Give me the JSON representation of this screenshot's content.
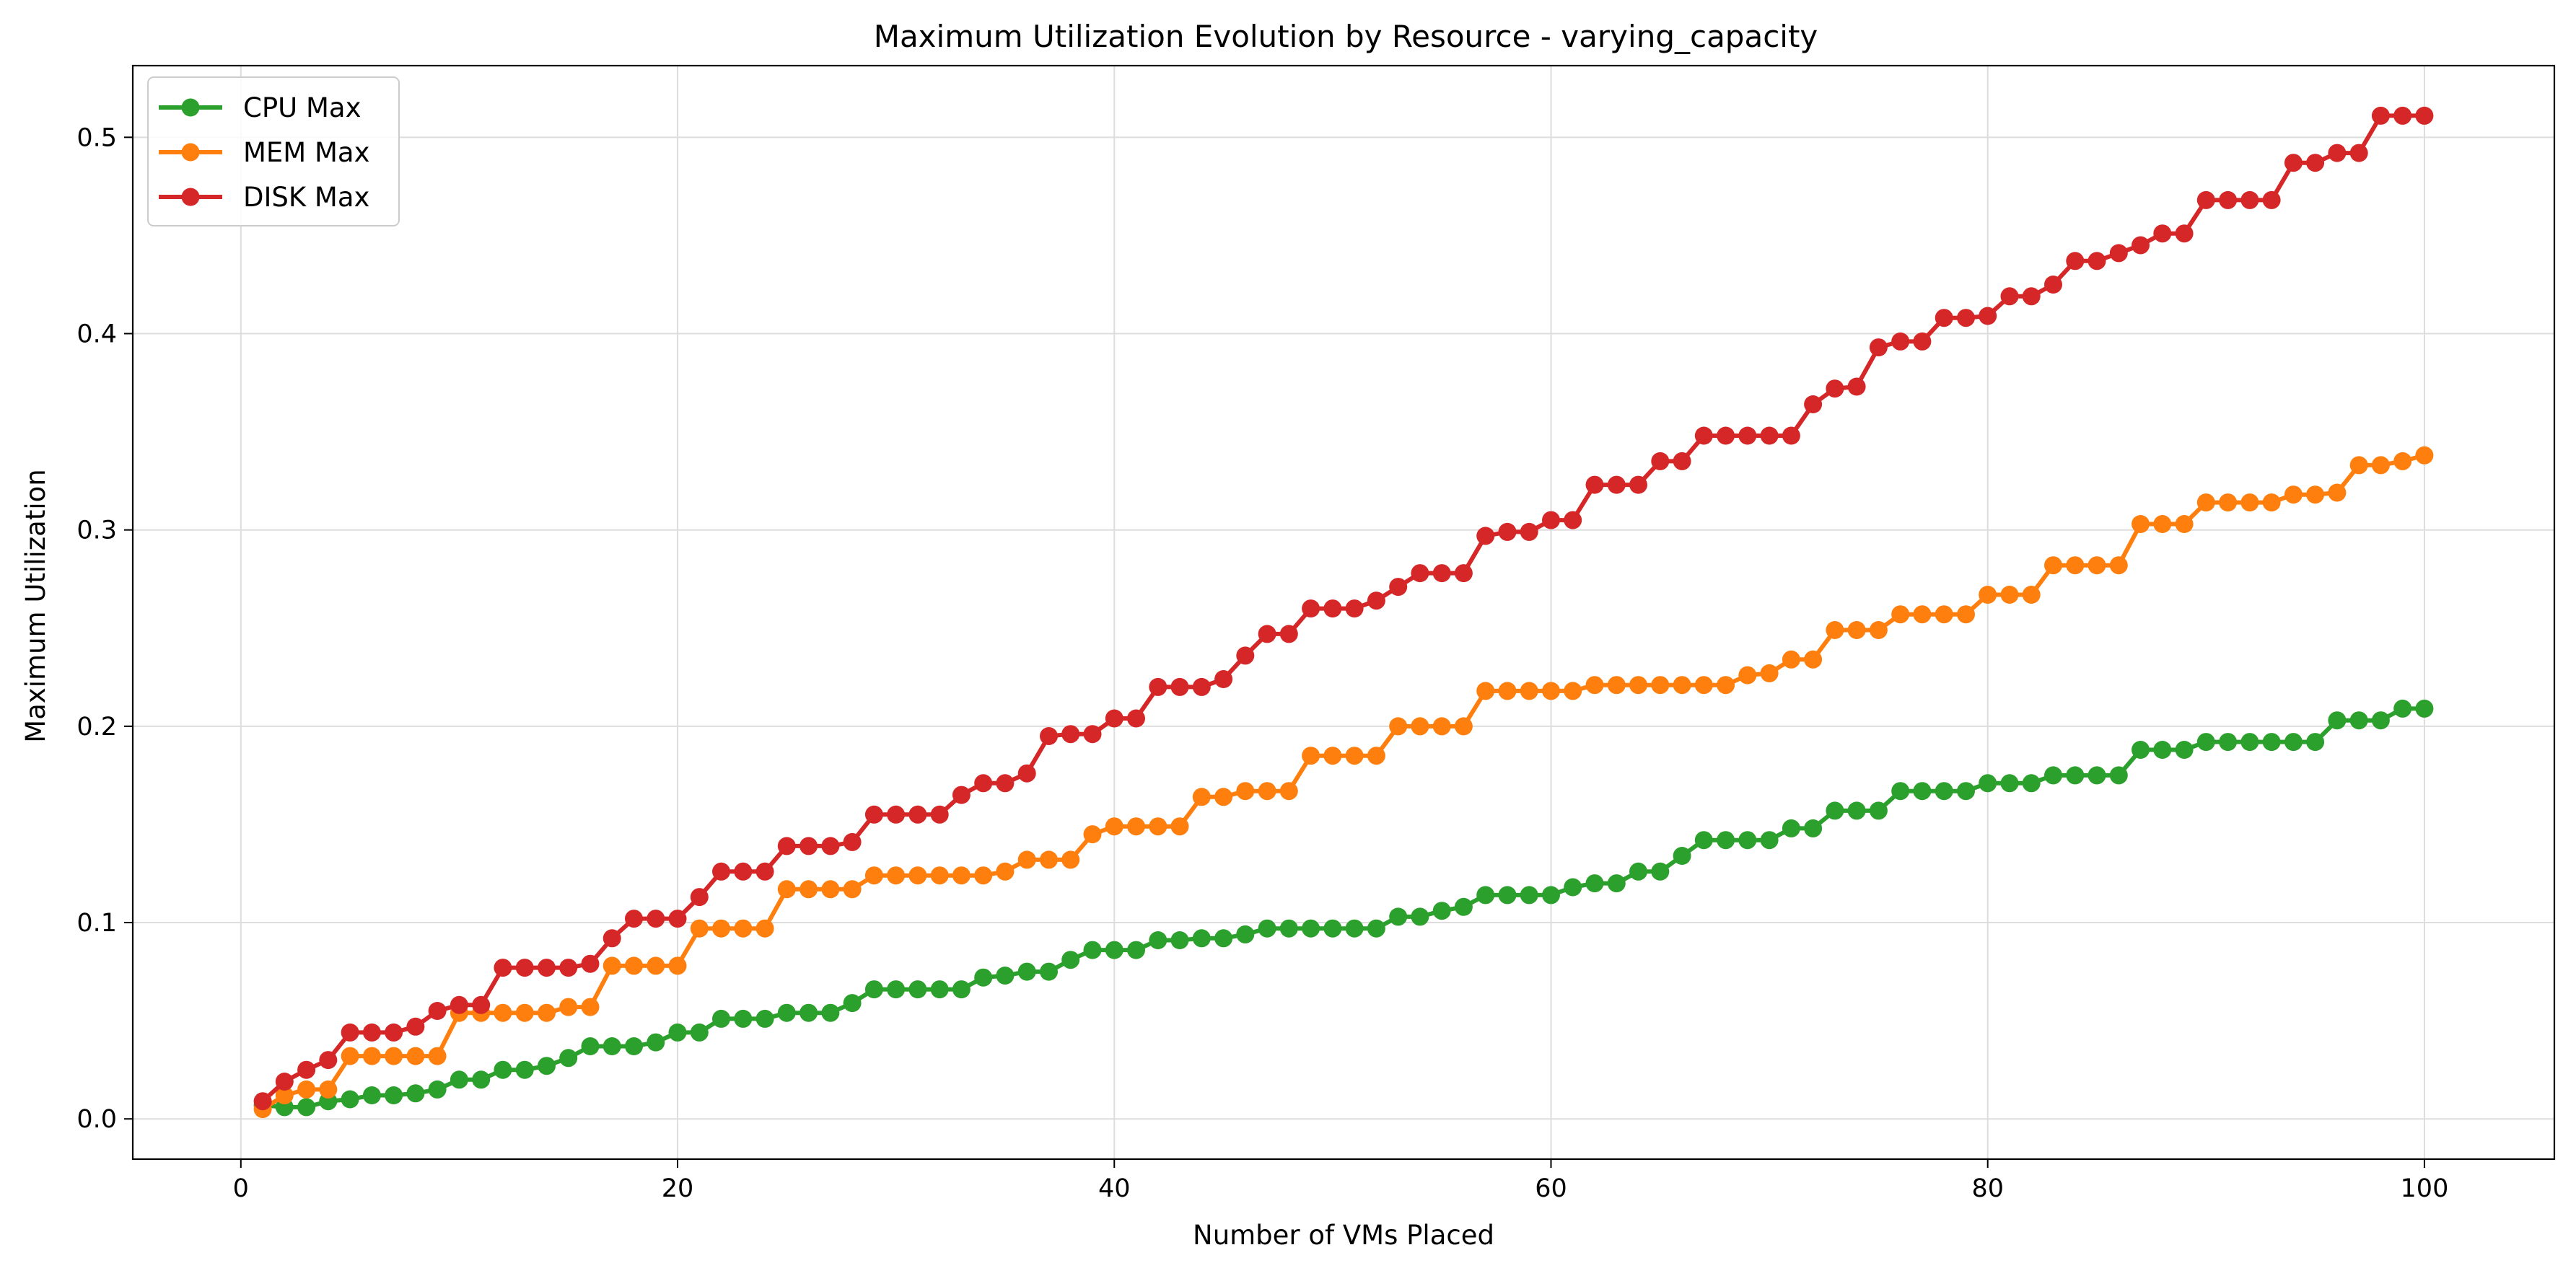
{
  "chart_data": {
    "type": "line",
    "title": "Maximum Utilization Evolution by Resource - varying_capacity",
    "xlabel": "Number of VMs Placed",
    "ylabel": "Maximum Utilization",
    "xlim": [
      -4.95,
      105.95
    ],
    "ylim": [
      -0.0205,
      0.5365
    ],
    "xticks": [
      0,
      20,
      40,
      60,
      80,
      100
    ],
    "yticks": [
      0.0,
      0.1,
      0.2,
      0.3,
      0.4,
      0.5
    ],
    "xtick_labels": [
      "0",
      "20",
      "40",
      "60",
      "80",
      "100"
    ],
    "ytick_labels": [
      "0.0",
      "0.1",
      "0.2",
      "0.3",
      "0.4",
      "0.5"
    ],
    "grid": true,
    "legend_position": "top-left",
    "x": [
      1,
      2,
      3,
      4,
      5,
      6,
      7,
      8,
      9,
      10,
      11,
      12,
      13,
      14,
      15,
      16,
      17,
      18,
      19,
      20,
      21,
      22,
      23,
      24,
      25,
      26,
      27,
      28,
      29,
      30,
      31,
      32,
      33,
      34,
      35,
      36,
      37,
      38,
      39,
      40,
      41,
      42,
      43,
      44,
      45,
      46,
      47,
      48,
      49,
      50,
      51,
      52,
      53,
      54,
      55,
      56,
      57,
      58,
      59,
      60,
      61,
      62,
      63,
      64,
      65,
      66,
      67,
      68,
      69,
      70,
      71,
      72,
      73,
      74,
      75,
      76,
      77,
      78,
      79,
      80,
      81,
      82,
      83,
      84,
      85,
      86,
      87,
      88,
      89,
      90,
      91,
      92,
      93,
      94,
      95,
      96,
      97,
      98,
      99,
      100
    ],
    "series": [
      {
        "name": "CPU Max",
        "color": "#2ca02c",
        "values": [
          0.007,
          0.006,
          0.006,
          0.009,
          0.01,
          0.012,
          0.012,
          0.013,
          0.015,
          0.02,
          0.02,
          0.025,
          0.025,
          0.027,
          0.031,
          0.037,
          0.037,
          0.037,
          0.039,
          0.044,
          0.044,
          0.051,
          0.051,
          0.051,
          0.054,
          0.054,
          0.054,
          0.059,
          0.066,
          0.066,
          0.066,
          0.066,
          0.066,
          0.072,
          0.073,
          0.075,
          0.075,
          0.081,
          0.086,
          0.086,
          0.086,
          0.091,
          0.091,
          0.092,
          0.092,
          0.094,
          0.097,
          0.097,
          0.097,
          0.097,
          0.097,
          0.097,
          0.103,
          0.103,
          0.106,
          0.108,
          0.114,
          0.114,
          0.114,
          0.114,
          0.118,
          0.12,
          0.12,
          0.126,
          0.126,
          0.134,
          0.142,
          0.142,
          0.142,
          0.142,
          0.148,
          0.148,
          0.157,
          0.157,
          0.157,
          0.167,
          0.167,
          0.167,
          0.167,
          0.171,
          0.171,
          0.171,
          0.175,
          0.175,
          0.175,
          0.175,
          0.188,
          0.188,
          0.188,
          0.192,
          0.192,
          0.192,
          0.192,
          0.192,
          0.192,
          0.203,
          0.203,
          0.203,
          0.209,
          0.209
        ]
      },
      {
        "name": "MEM Max",
        "color": "#ff7f0e",
        "values": [
          0.005,
          0.012,
          0.015,
          0.015,
          0.032,
          0.032,
          0.032,
          0.032,
          0.032,
          0.054,
          0.054,
          0.054,
          0.054,
          0.054,
          0.057,
          0.057,
          0.078,
          0.078,
          0.078,
          0.078,
          0.097,
          0.097,
          0.097,
          0.097,
          0.117,
          0.117,
          0.117,
          0.117,
          0.124,
          0.124,
          0.124,
          0.124,
          0.124,
          0.124,
          0.126,
          0.132,
          0.132,
          0.132,
          0.145,
          0.149,
          0.149,
          0.149,
          0.149,
          0.164,
          0.164,
          0.167,
          0.167,
          0.167,
          0.185,
          0.185,
          0.185,
          0.185,
          0.2,
          0.2,
          0.2,
          0.2,
          0.218,
          0.218,
          0.218,
          0.218,
          0.218,
          0.221,
          0.221,
          0.221,
          0.221,
          0.221,
          0.221,
          0.221,
          0.226,
          0.227,
          0.234,
          0.234,
          0.249,
          0.249,
          0.249,
          0.257,
          0.257,
          0.257,
          0.257,
          0.267,
          0.267,
          0.267,
          0.282,
          0.282,
          0.282,
          0.282,
          0.303,
          0.303,
          0.303,
          0.314,
          0.314,
          0.314,
          0.314,
          0.318,
          0.318,
          0.319,
          0.333,
          0.333,
          0.335,
          0.338
        ]
      },
      {
        "name": "DISK Max",
        "color": "#d62728",
        "values": [
          0.009,
          0.019,
          0.025,
          0.03,
          0.044,
          0.044,
          0.044,
          0.047,
          0.055,
          0.058,
          0.058,
          0.077,
          0.077,
          0.077,
          0.077,
          0.079,
          0.092,
          0.102,
          0.102,
          0.102,
          0.113,
          0.126,
          0.126,
          0.126,
          0.139,
          0.139,
          0.139,
          0.141,
          0.155,
          0.155,
          0.155,
          0.155,
          0.165,
          0.171,
          0.171,
          0.176,
          0.195,
          0.196,
          0.196,
          0.204,
          0.204,
          0.22,
          0.22,
          0.22,
          0.224,
          0.236,
          0.247,
          0.247,
          0.26,
          0.26,
          0.26,
          0.264,
          0.271,
          0.278,
          0.278,
          0.278,
          0.297,
          0.299,
          0.299,
          0.305,
          0.305,
          0.323,
          0.323,
          0.323,
          0.335,
          0.335,
          0.348,
          0.348,
          0.348,
          0.348,
          0.348,
          0.364,
          0.372,
          0.373,
          0.393,
          0.396,
          0.396,
          0.408,
          0.408,
          0.409,
          0.419,
          0.419,
          0.425,
          0.437,
          0.437,
          0.441,
          0.445,
          0.451,
          0.451,
          0.468,
          0.468,
          0.468,
          0.468,
          0.487,
          0.487,
          0.492,
          0.492,
          0.511,
          0.511,
          0.511
        ]
      }
    ]
  }
}
